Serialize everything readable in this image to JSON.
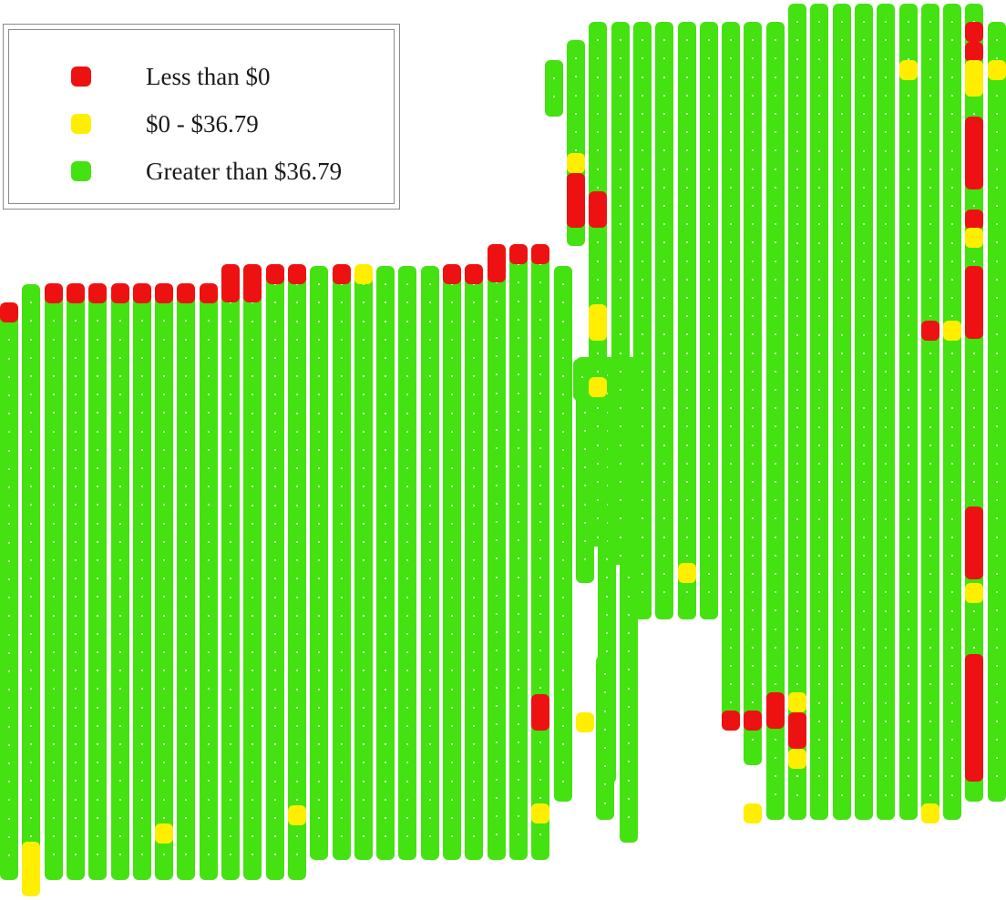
{
  "legend": {
    "items": [
      {
        "label": "Less than $0",
        "color": "#ee1111",
        "class": "loss"
      },
      {
        "label": "$0 - $36.79",
        "color": "#ffee00",
        "class": "low"
      },
      {
        "label": "Greater than $36.79",
        "color": "#44e211",
        "class": "high"
      }
    ]
  }
}
